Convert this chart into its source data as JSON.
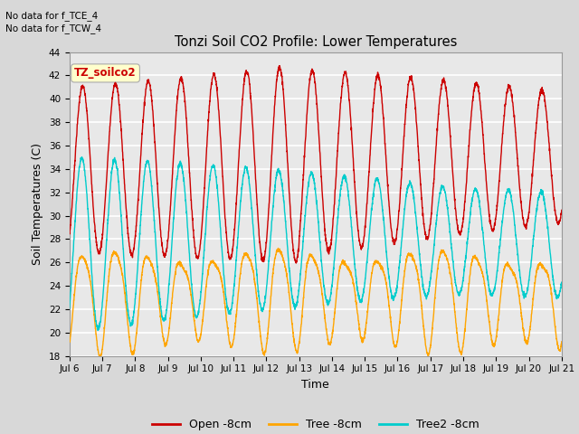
{
  "title": "Tonzi Soil CO2 Profile: Lower Temperatures",
  "xlabel": "Time",
  "ylabel": "Soil Temperatures (C)",
  "ylim": [
    18,
    44
  ],
  "yticks": [
    18,
    20,
    22,
    24,
    26,
    28,
    30,
    32,
    34,
    36,
    38,
    40,
    42,
    44
  ],
  "xtick_labels": [
    "Jul 6",
    "Jul 7",
    "Jul 8",
    "Jul 9",
    "Jul 10",
    "Jul 11",
    "Jul 12",
    "Jul 13",
    "Jul 14",
    "Jul 15",
    "Jul 16",
    "Jul 17",
    "Jul 18",
    "Jul 19",
    "Jul 20",
    "Jul 21"
  ],
  "note_line1": "No data for f_TCE_4",
  "note_line2": "No data for f_TCW_4",
  "watermark": "TZ_soilco2",
  "line_colors": [
    "#cc0000",
    "#ffa500",
    "#00cccc"
  ],
  "line_labels": [
    "Open -8cm",
    "Tree -8cm",
    "Tree2 -8cm"
  ],
  "bg_color": "#e8e8e8",
  "grid_color": "#ffffff"
}
